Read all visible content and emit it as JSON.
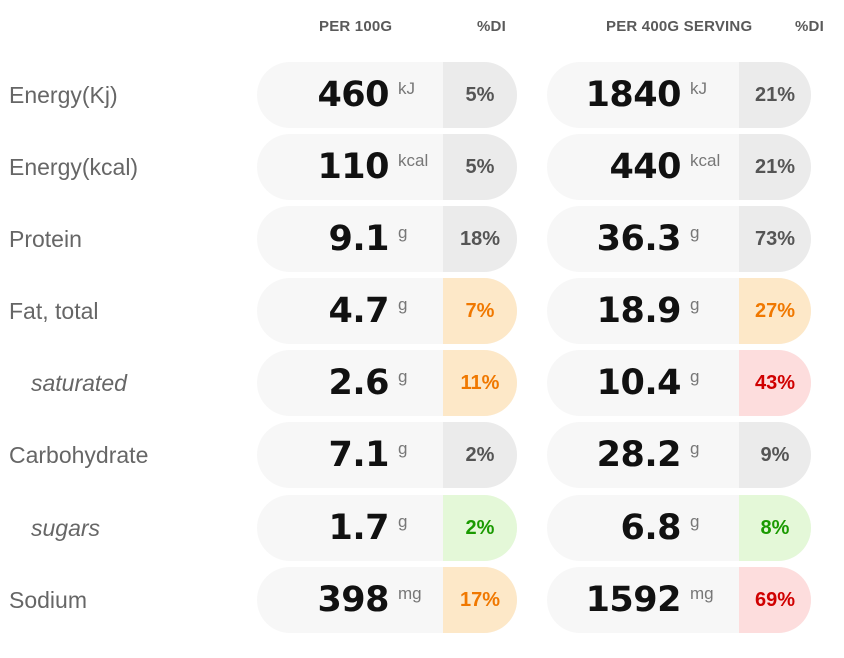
{
  "headers": {
    "per100": "PER 100G",
    "di1": "%DI",
    "perServing": "PER 400G SERVING",
    "di2": "%DI"
  },
  "rows": [
    {
      "label": "Energy(Kj)",
      "sub": false,
      "v1": "460",
      "u1": "kJ",
      "d1": "5%",
      "c1": "grey",
      "v2": "1840",
      "u2": "kJ",
      "d2": "21%",
      "c2": "grey"
    },
    {
      "label": "Energy(kcal)",
      "sub": false,
      "v1": "110",
      "u1": "kcal",
      "d1": "5%",
      "c1": "grey",
      "v2": "440",
      "u2": "kcal",
      "d2": "21%",
      "c2": "grey"
    },
    {
      "label": "Protein",
      "sub": false,
      "v1": "9.1",
      "u1": "g",
      "d1": "18%",
      "c1": "grey",
      "v2": "36.3",
      "u2": "g",
      "d2": "73%",
      "c2": "grey"
    },
    {
      "label": "Fat, total",
      "sub": false,
      "v1": "4.7",
      "u1": "g",
      "d1": "7%",
      "c1": "orange",
      "v2": "18.9",
      "u2": "g",
      "d2": "27%",
      "c2": "orange"
    },
    {
      "label": "saturated",
      "sub": true,
      "v1": "2.6",
      "u1": "g",
      "d1": "11%",
      "c1": "orange",
      "v2": "10.4",
      "u2": "g",
      "d2": "43%",
      "c2": "red"
    },
    {
      "label": "Carbohydrate",
      "sub": false,
      "v1": "7.1",
      "u1": "g",
      "d1": "2%",
      "c1": "grey",
      "v2": "28.2",
      "u2": "g",
      "d2": "9%",
      "c2": "grey"
    },
    {
      "label": "sugars",
      "sub": true,
      "v1": "1.7",
      "u1": "g",
      "d1": "2%",
      "c1": "green",
      "v2": "6.8",
      "u2": "g",
      "d2": "8%",
      "c2": "green"
    },
    {
      "label": "Sodium",
      "sub": false,
      "v1": "398",
      "u1": "mg",
      "d1": "17%",
      "c1": "orange",
      "v2": "1592",
      "u2": "mg",
      "d2": "69%",
      "c2": "red"
    }
  ],
  "colors": {
    "grey": "#ebebeb",
    "orange": "#fde8c8",
    "red": "#fddddd",
    "green": "#e4f8d8",
    "pill": "#f7f7f7"
  }
}
